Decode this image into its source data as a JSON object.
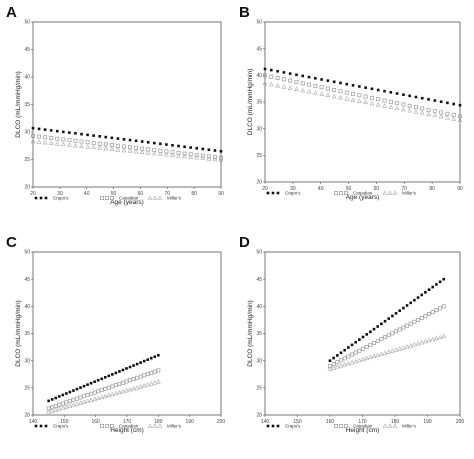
{
  "colors": {
    "crapo": "#111111",
    "canadian": "#999999",
    "miller": "#aaaaaa"
  },
  "chart_data": [
    {
      "panel": "A",
      "type": "scatter",
      "xlabel": "Age (years)",
      "ylabel": "DLCO (mL/mmHg/min)",
      "xlim": [
        20,
        90
      ],
      "ylim": [
        20,
        50
      ],
      "xticks": [
        "20",
        "30",
        "40",
        "50",
        "60",
        "70",
        "80",
        "90"
      ],
      "yticks": [
        "20",
        "25",
        "30",
        "35",
        "40",
        "45",
        "50"
      ],
      "series": [
        {
          "name": "Crapo's",
          "marker": "filled-square",
          "x": [
            20,
            90
          ],
          "y": [
            30.7,
            26.5
          ]
        },
        {
          "name": "Canadian",
          "marker": "open-square",
          "x": [
            20,
            90
          ],
          "y": [
            29.3,
            25.3
          ]
        },
        {
          "name": "Miller's",
          "marker": "open-triangle",
          "x": [
            20,
            90
          ],
          "y": [
            28.3,
            24.9
          ]
        }
      ]
    },
    {
      "panel": "B",
      "type": "scatter",
      "xlabel": "Age (years)",
      "ylabel": "DLCO (mL/mmHg/min)",
      "xlim": [
        20,
        90
      ],
      "ylim": [
        20,
        50
      ],
      "xticks": [
        "20",
        "30",
        "40",
        "50",
        "60",
        "70",
        "80",
        "90"
      ],
      "yticks": [
        "20",
        "25",
        "30",
        "35",
        "40",
        "45",
        "50"
      ],
      "series": [
        {
          "name": "Crapo's",
          "marker": "filled-square",
          "x": [
            20,
            90
          ],
          "y": [
            41.2,
            34.4
          ]
        },
        {
          "name": "Canadian",
          "marker": "open-square",
          "x": [
            20,
            90
          ],
          "y": [
            40.0,
            32.3
          ]
        },
        {
          "name": "Miller's",
          "marker": "open-triangle",
          "x": [
            20,
            90
          ],
          "y": [
            38.5,
            31.6
          ]
        }
      ]
    },
    {
      "panel": "C",
      "type": "scatter",
      "xlabel": "Height (cm)",
      "ylabel": "DLCO (mL/mmHg/min)",
      "xlim": [
        140,
        200
      ],
      "ylim": [
        20,
        50
      ],
      "xticks": [
        "140",
        "150",
        "160",
        "170",
        "180",
        "190",
        "200"
      ],
      "yticks": [
        "20",
        "25",
        "30",
        "35",
        "40",
        "45",
        "50"
      ],
      "series": [
        {
          "name": "Crapo's",
          "marker": "filled-square",
          "x": [
            145,
            180
          ],
          "y": [
            22.6,
            31.0
          ]
        },
        {
          "name": "Canadian",
          "marker": "open-square",
          "x": [
            145,
            180
          ],
          "y": [
            21.2,
            28.2
          ]
        },
        {
          "name": "Miller's",
          "marker": "open-triangle",
          "x": [
            145,
            180
          ],
          "y": [
            20.6,
            26.1
          ]
        }
      ]
    },
    {
      "panel": "D",
      "type": "scatter",
      "xlabel": "Height (cm)",
      "ylabel": "DLCO (mL/mmHg/min)",
      "xlim": [
        140,
        200
      ],
      "ylim": [
        20,
        50
      ],
      "xticks": [
        "140",
        "150",
        "160",
        "170",
        "180",
        "190",
        "200"
      ],
      "yticks": [
        "20",
        "25",
        "30",
        "35",
        "40",
        "45",
        "50"
      ],
      "series": [
        {
          "name": "Crapo's",
          "marker": "filled-square",
          "x": [
            160,
            195
          ],
          "y": [
            30.0,
            45.0
          ]
        },
        {
          "name": "Canadian",
          "marker": "open-square",
          "x": [
            160,
            195
          ],
          "y": [
            29.0,
            40.0
          ]
        },
        {
          "name": "Miller's",
          "marker": "open-triangle",
          "x": [
            160,
            195
          ],
          "y": [
            28.5,
            34.5
          ]
        }
      ]
    }
  ]
}
